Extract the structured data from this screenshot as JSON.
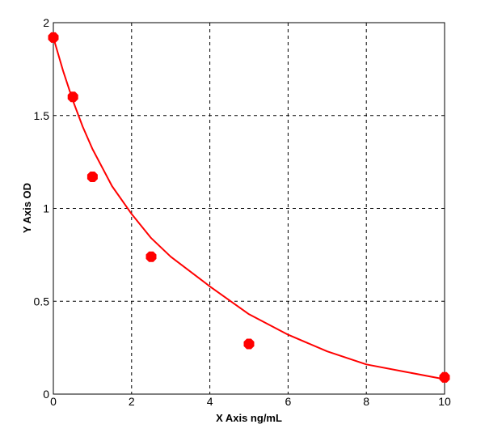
{
  "chart_data": {
    "type": "scatter",
    "title": "",
    "xlabel": "X Axis ng/mL",
    "ylabel": "Y Axis OD",
    "xlim": [
      0,
      10
    ],
    "ylim": [
      0,
      2
    ],
    "x_ticks": [
      0,
      2,
      4,
      6,
      8,
      10
    ],
    "y_ticks": [
      0,
      0.5,
      1,
      1.5,
      2
    ],
    "x_tick_labels": [
      "0",
      "2",
      "4",
      "6",
      "8",
      "10"
    ],
    "y_tick_labels": [
      "0",
      "0.5",
      "1",
      "1.5",
      "2"
    ],
    "grid": true,
    "grid_style": "dashed",
    "legend": "none",
    "series": [
      {
        "kind": "points",
        "x": [
          0,
          0.5,
          1,
          2.5,
          5,
          10
        ],
        "y": [
          1.92,
          1.6,
          1.17,
          0.74,
          0.27,
          0.09
        ],
        "color": "#ff0000"
      },
      {
        "kind": "fitted-curve",
        "x": [
          0,
          0.25,
          0.5,
          0.75,
          1,
          1.5,
          2,
          2.5,
          3,
          4,
          5,
          6,
          7,
          8,
          9,
          10
        ],
        "y": [
          1.92,
          1.74,
          1.58,
          1.44,
          1.32,
          1.12,
          0.97,
          0.84,
          0.74,
          0.58,
          0.43,
          0.32,
          0.23,
          0.16,
          0.12,
          0.08
        ],
        "color": "#ff0000"
      }
    ]
  }
}
